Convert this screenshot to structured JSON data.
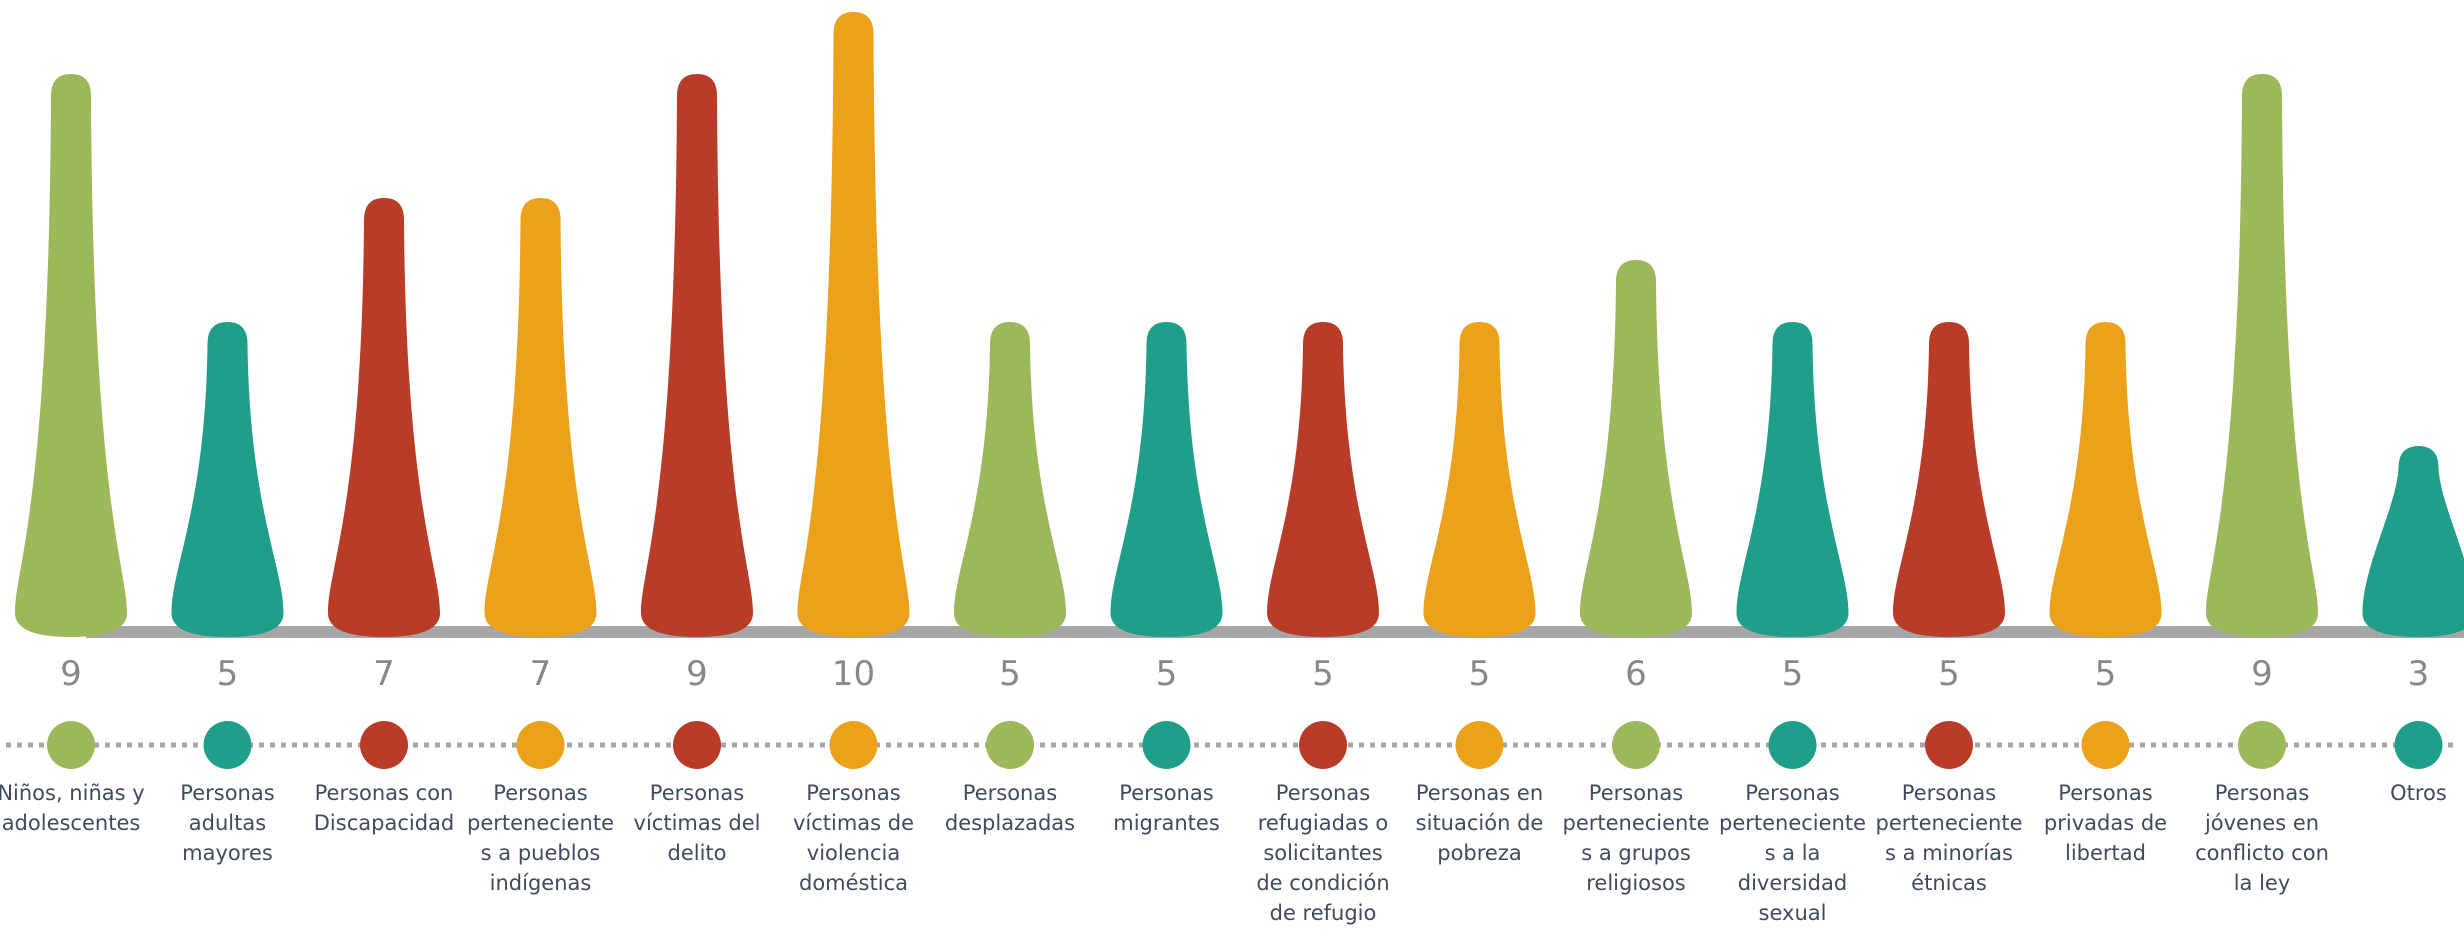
{
  "chart_data": {
    "type": "flask",
    "categories": [
      "Niños, niñas y adolescentes",
      "Personas adultas mayores",
      "Personas con Discapacidad",
      "Personas pertenecientes a pueblos indígenas",
      "Personas víctimas del delito",
      "Personas víctimas de violencia doméstica",
      "Personas desplazadas",
      "Personas migrantes",
      "Personas refugiadas o solicitantes de condición de refugio",
      "Personas en situación de pobreza",
      "Personas pertenecientes a grupos religiosos",
      "Personas pertenecientes a la diversidad sexual",
      "Personas pertenecientes a minorías étnicas",
      "Personas privadas de libertad",
      "Personas jóvenes en conflicto con la ley",
      "Otros"
    ],
    "values": [
      9,
      5,
      7,
      7,
      9,
      10,
      5,
      5,
      5,
      5,
      6,
      5,
      5,
      5,
      9,
      3
    ],
    "colors": [
      "#9cb85a",
      "#1f9e89",
      "#b83c27",
      "#eca11a",
      "#b83c27",
      "#eca11a",
      "#9cb85a",
      "#1f9e89",
      "#b83c27",
      "#eca11a",
      "#9cb85a",
      "#1f9e89",
      "#b83c27",
      "#eca11a",
      "#9cb85a",
      "#1f9e89"
    ],
    "ylim": [
      0,
      10
    ]
  }
}
